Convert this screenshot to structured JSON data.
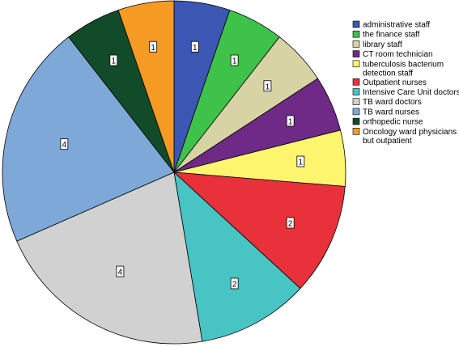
{
  "chart_data": {
    "type": "pie",
    "title": "",
    "start_angle_deg": 0,
    "direction": "clockwise",
    "legend_position": "right",
    "slices": [
      {
        "label": "administrative staff",
        "value": 1,
        "color": "#3c56b3"
      },
      {
        "label": "the finance staff",
        "value": 1,
        "color": "#3ec24a"
      },
      {
        "label": "library staff",
        "value": 1,
        "color": "#d8d3a5"
      },
      {
        "label": "CT room technician",
        "value": 1,
        "color": "#6e2a86"
      },
      {
        "label": "tuberculosis bacterium detection staff",
        "value": 1,
        "color": "#fdf56e"
      },
      {
        "label": "Outpatient nurses",
        "value": 2,
        "color": "#e8313a"
      },
      {
        "label": "Intensive Care Unit doctors",
        "value": 2,
        "color": "#48c4c4"
      },
      {
        "label": "TB ward doctors",
        "value": 4,
        "color": "#d1d1d1"
      },
      {
        "label": "TB ward nurses",
        "value": 4,
        "color": "#7ea8d8"
      },
      {
        "label": "orthopedic nurse",
        "value": 1,
        "color": "#124b2a"
      },
      {
        "label": "Oncology ward physicians but outpatient",
        "value": 1,
        "color": "#f59a22"
      }
    ],
    "legend_lines": [
      [
        "administrative staff"
      ],
      [
        "the finance staff"
      ],
      [
        "library staff"
      ],
      [
        "CT room technician"
      ],
      [
        "tuberculosis bacterium",
        "detection staff"
      ],
      [
        "Outpatient nurses"
      ],
      [
        "Intensive Care Unit doctors"
      ],
      [
        "TB ward doctors"
      ],
      [
        "TB ward nurses"
      ],
      [
        "orthopedic nurse"
      ],
      [
        "Oncology ward physicians",
        "but outpatient"
      ]
    ]
  }
}
